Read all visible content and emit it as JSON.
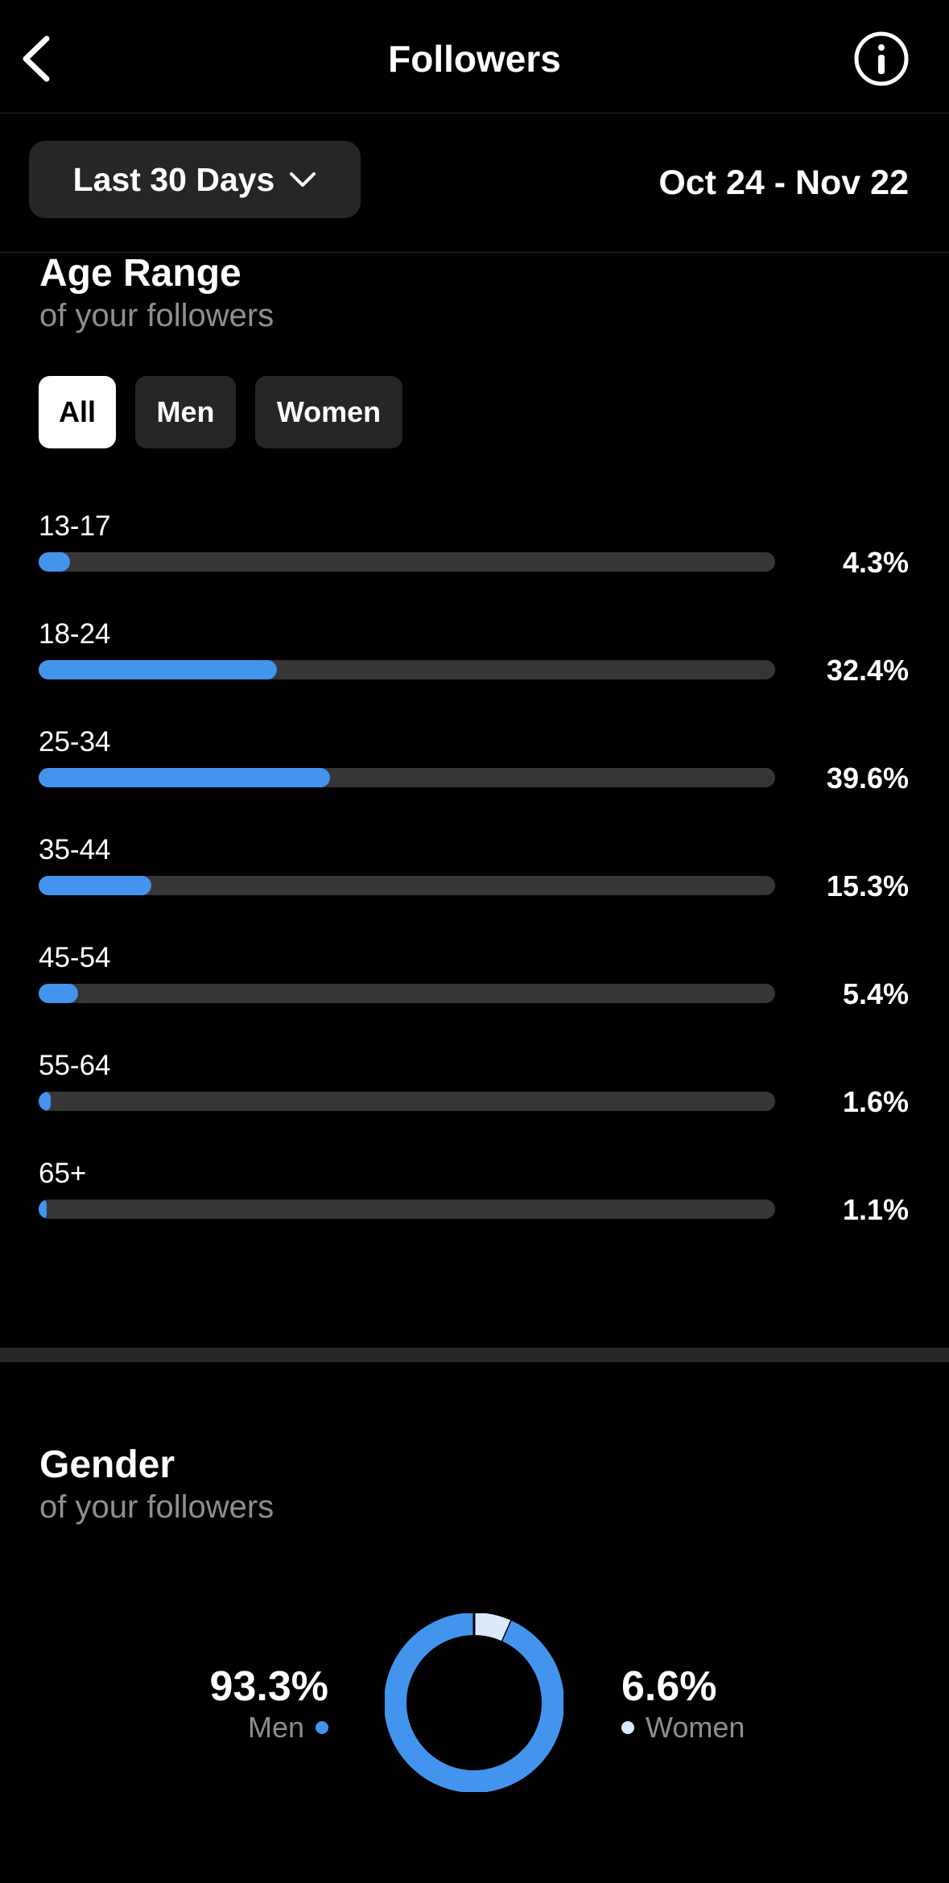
{
  "header": {
    "title": "Followers",
    "back_icon": "chevron-left-icon",
    "info_icon": "info-circle-icon"
  },
  "filter": {
    "range_label": "Last 30 Days",
    "date_range": "Oct 24 - Nov 22"
  },
  "age_section": {
    "title": "Age Range",
    "subtitle": "of your followers",
    "segments": [
      "All",
      "Men",
      "Women"
    ],
    "selected_segment": "All"
  },
  "gender_section": {
    "title": "Gender",
    "subtitle": "of your followers"
  },
  "colors": {
    "accent": "#4394ed",
    "secondary": "#dce9fb",
    "track": "#363636",
    "card": "#262626"
  },
  "chart_data": [
    {
      "type": "bar",
      "orientation": "horizontal",
      "categories": [
        "13-17",
        "18-24",
        "25-34",
        "35-44",
        "45-54",
        "55-64",
        "65+"
      ],
      "values": [
        4.3,
        32.4,
        39.6,
        15.3,
        5.4,
        1.6,
        1.1
      ],
      "value_labels": [
        "4.3%",
        "32.4%",
        "39.6%",
        "15.3%",
        "5.4%",
        "1.6%",
        "1.1%"
      ],
      "xlim": [
        0,
        100
      ]
    },
    {
      "type": "pie",
      "donut": true,
      "categories": [
        "Men",
        "Women"
      ],
      "values": [
        93.3,
        6.6
      ],
      "value_labels": [
        "93.3%",
        "6.6%"
      ],
      "colors": [
        "#4394ed",
        "#dce9fb"
      ]
    }
  ]
}
